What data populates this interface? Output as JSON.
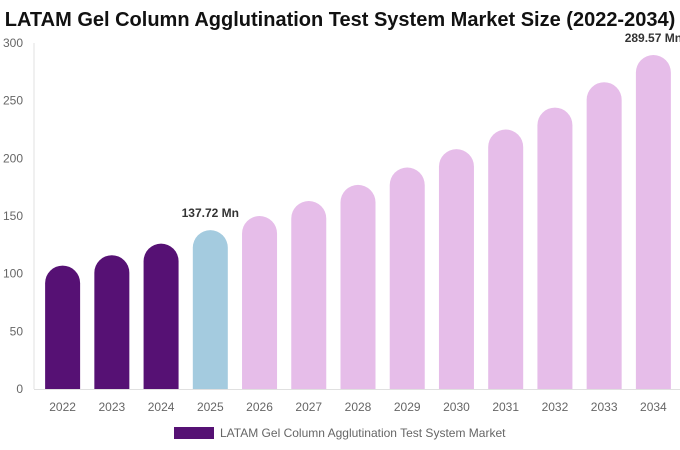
{
  "chart_data": {
    "type": "bar",
    "title": "LATAM Gel Column Agglutination Test System Market Size (2022-2034)",
    "categories": [
      "2022",
      "2023",
      "2024",
      "2025",
      "2026",
      "2027",
      "2028",
      "2029",
      "2030",
      "2031",
      "2032",
      "2033",
      "2034"
    ],
    "series": [
      {
        "name": "LATAM Gel Column Agglutination Test System Market",
        "values": [
          107,
          116,
          126,
          137.72,
          150,
          163,
          177,
          192,
          208,
          225,
          244,
          266,
          289.57
        ]
      }
    ],
    "ylim": [
      0,
      300
    ],
    "yticks": [
      0,
      50,
      100,
      150,
      200,
      250,
      300
    ],
    "data_labels": [
      {
        "category": "2025",
        "text": "137.72 Mn"
      },
      {
        "category": "2034",
        "text": "289.57 Mn"
      }
    ],
    "colors": {
      "historical": "#561174",
      "base_year": "#a4cbdf",
      "forecast": "#e6bde9"
    },
    "bar_color_groups": [
      "historical",
      "historical",
      "historical",
      "base_year",
      "forecast",
      "forecast",
      "forecast",
      "forecast",
      "forecast",
      "forecast",
      "forecast",
      "forecast",
      "forecast"
    ],
    "legend_color": "#561174",
    "grid": false,
    "legend_position": "bottom"
  }
}
